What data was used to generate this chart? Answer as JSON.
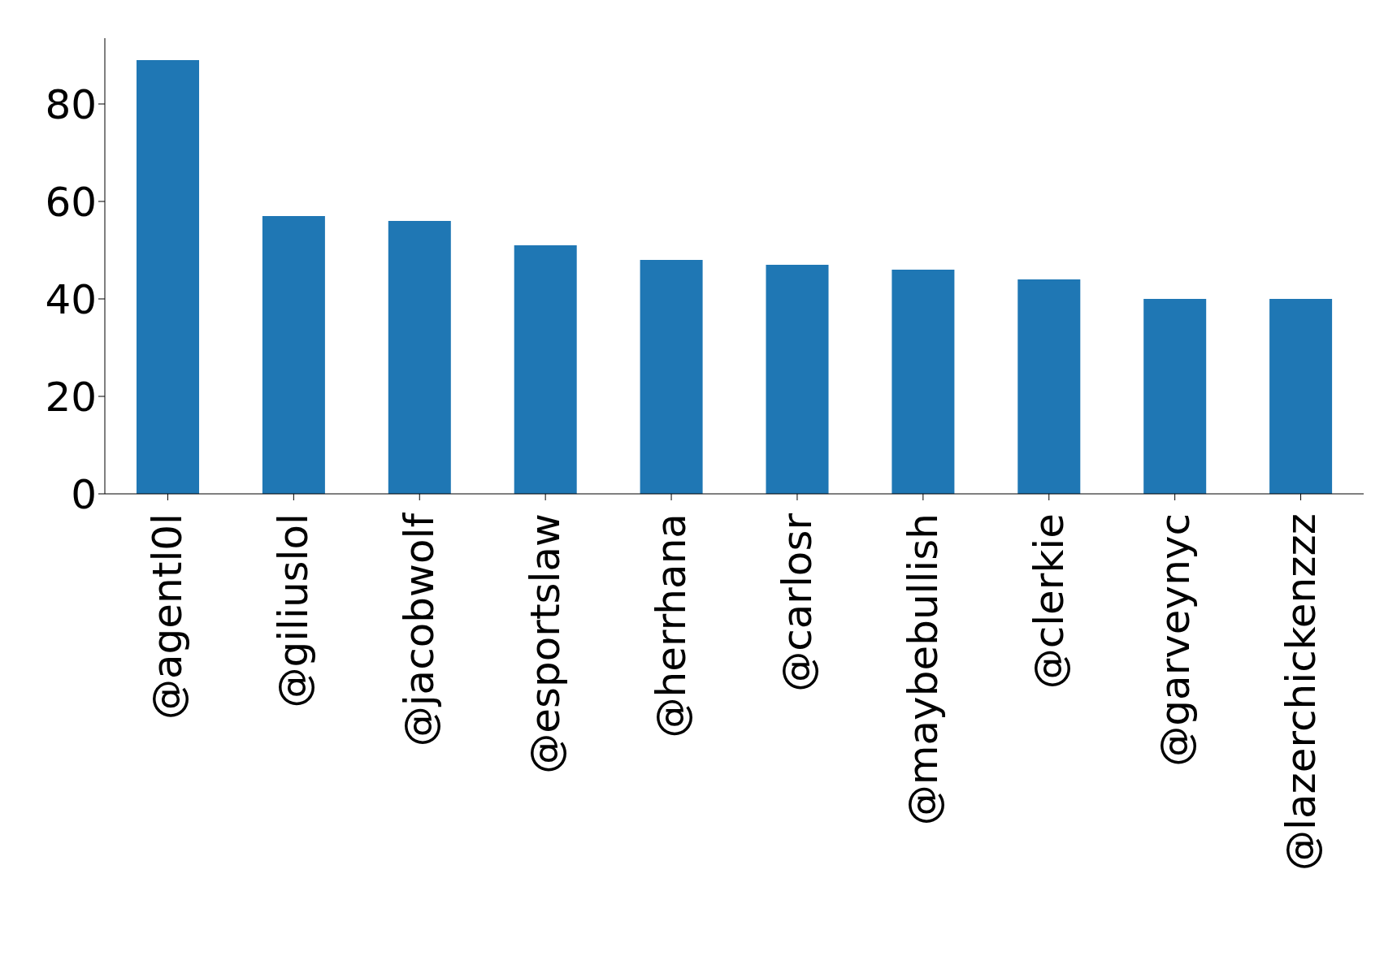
{
  "chart_data": {
    "type": "bar",
    "categories": [
      "@agentl0l",
      "@giliuslol",
      "@jacobwolf",
      "@esportslaw",
      "@herrhana",
      "@carlosr",
      "@maybebullish",
      "@clerkie",
      "@garveynyc",
      "@lazerchickenzzz"
    ],
    "values": [
      89,
      57,
      56,
      51,
      48,
      47,
      46,
      44,
      40,
      40
    ],
    "color": "#1f77b4",
    "ylim": [
      0,
      93.5
    ],
    "yticks": [
      0,
      20,
      40,
      60,
      80
    ],
    "grid": false,
    "legend": false
  }
}
